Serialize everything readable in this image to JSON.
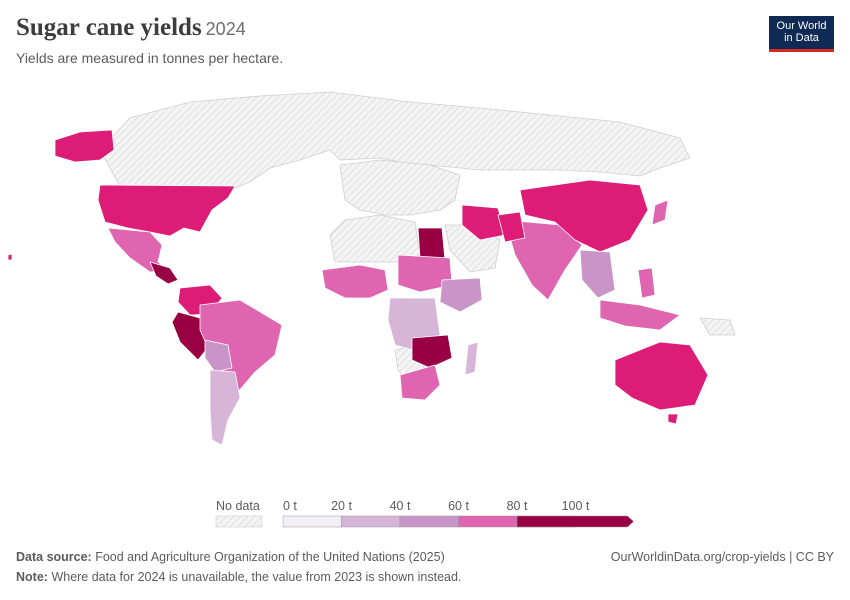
{
  "header": {
    "title": "Sugar cane yields",
    "year": "2024",
    "subtitle": "Yields are measured in tonnes per hectare."
  },
  "logo": {
    "line1": "Our World",
    "line2": "in Data"
  },
  "legend": {
    "no_data_label": "No data",
    "bins": [
      {
        "label": "0 t",
        "color": "#f1eef6"
      },
      {
        "label": "20 t",
        "color": "#d7b5d8"
      },
      {
        "label": "40 t",
        "color": "#c994c7"
      },
      {
        "label": "60 t",
        "color": "#df65b0"
      },
      {
        "label": "80 t",
        "color": "#dd1c77"
      },
      {
        "label": "100 t",
        "color": "#980043"
      }
    ]
  },
  "colors": {
    "no_data_fill": "#f4f4f4",
    "no_data_hatch": "#cfcfcf",
    "border": "#ffffff"
  },
  "footer": {
    "source_label": "Data source:",
    "source_text": "Food and Agriculture Organization of the United Nations (2025)",
    "url": "OurWorldinData.org/crop-yields | CC BY",
    "note_label": "Note:",
    "note_text": "Where data for 2024 is unavailable, the value from 2023 is shown instead."
  }
}
